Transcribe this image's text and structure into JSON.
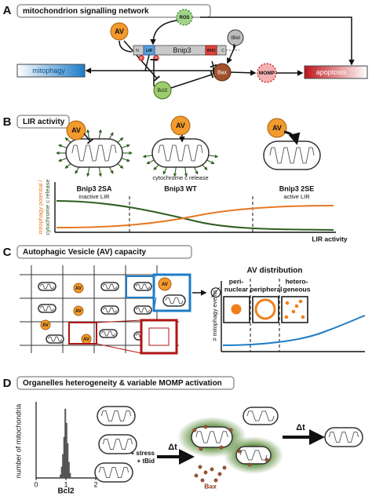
{
  "panel_a": {
    "letter": "A",
    "title": "mitochondrion signalling network",
    "av": "AV",
    "ros": "ROS",
    "tbid": "tBid",
    "bax": "Bax",
    "momp": "MOMP",
    "bcl2": "Bcl2",
    "bnip3": {
      "n": "N",
      "lir": "LIR",
      "name": "Bnip3",
      "bh3": "BH3",
      "c": "C",
      "phospho": [
        "P",
        "P"
      ]
    },
    "mitophagy": "mitophagy",
    "apoptosis": "apoptosis"
  },
  "panel_b": {
    "letter": "B",
    "title": "LIR activity",
    "av": [
      "AV",
      "AV",
      "AV"
    ],
    "cytochrome_release": "cytochrome c release",
    "variants": [
      {
        "name": "Bnip3 2SA",
        "note": "inactive LIR"
      },
      {
        "name": "Bnip3 WT"
      },
      {
        "name": "Bnip3 2SE",
        "note": "active LIR"
      }
    ],
    "y_label": [
      "mitophagy potential /",
      "cytochrome c release"
    ],
    "x_label": "LIR activity"
  },
  "panel_c": {
    "letter": "C",
    "title": "Autophagic Vesicle (AV) capacity",
    "av": [
      "AV",
      "AV",
      "AV",
      "AV",
      "AV"
    ],
    "empty_set": "∅",
    "distribution_title": "AV distribution",
    "distributions": [
      [
        "peri-",
        "nuclear"
      ],
      [
        "peripheral"
      ],
      [
        "hetero-",
        "geneous"
      ]
    ],
    "y_label": "# mitophagy events"
  },
  "panel_d": {
    "letter": "D",
    "title": "Organelles heterogeneity & variable MOMP activation",
    "histogram": {
      "y_label": "number of mitochondria",
      "x_label": "Bcl2",
      "xlim": [
        0,
        2
      ],
      "xticks": [
        0,
        1,
        2
      ]
    },
    "treatment": [
      "+ stress",
      "+ tBid"
    ],
    "delta_t": [
      "Δt",
      "Δt"
    ],
    "bax": "Bax"
  }
}
